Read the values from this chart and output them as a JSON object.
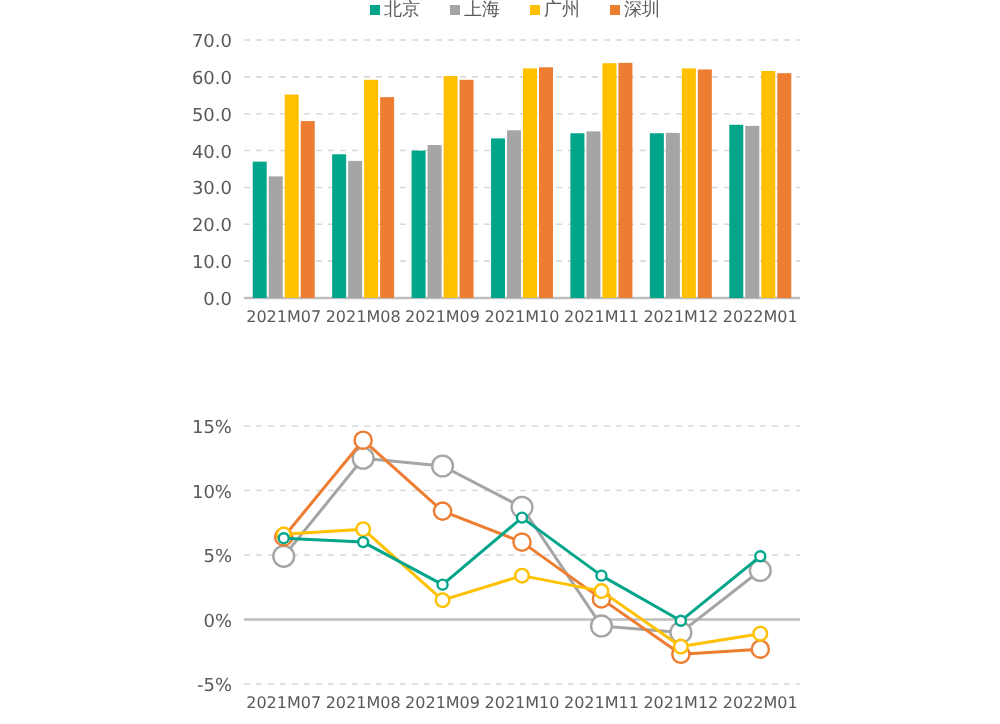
{
  "chart_data": [
    {
      "type": "bar",
      "categories": [
        "2021M07",
        "2021M08",
        "2021M09",
        "2021M10",
        "2021M11",
        "2021M12",
        "2022M01"
      ],
      "series": [
        {
          "name": "北京",
          "color": "#00a58a",
          "values": [
            37,
            39,
            40,
            43.3,
            44.7,
            44.7,
            47
          ]
        },
        {
          "name": "上海",
          "color": "#a5a5a5",
          "values": [
            33,
            37.2,
            41.5,
            45.5,
            45.2,
            44.8,
            46.7
          ]
        },
        {
          "name": "广州",
          "color": "#ffc000",
          "values": [
            55.2,
            59.2,
            60.2,
            62.3,
            63.7,
            62.3,
            61.6
          ]
        },
        {
          "name": "深圳",
          "color": "#ed7d31",
          "values": [
            48,
            54.5,
            59.2,
            62.6,
            63.8,
            62,
            61
          ]
        }
      ],
      "ylim": [
        0,
        70
      ],
      "yticks": [
        {
          "value": 0,
          "label": "0.0"
        },
        {
          "value": 10,
          "label": "10.0"
        },
        {
          "value": 20,
          "label": "20.0"
        },
        {
          "value": 30,
          "label": "30.0"
        },
        {
          "value": 40,
          "label": "40.0"
        },
        {
          "value": 50,
          "label": "50.0"
        },
        {
          "value": 60,
          "label": "60.0"
        },
        {
          "value": 70,
          "label": "70.0"
        }
      ],
      "grid": "y",
      "legend": "top"
    },
    {
      "type": "line",
      "categories": [
        "2021M07",
        "2021M08",
        "2021M09",
        "2021M10",
        "2021M11",
        "2021M12",
        "2022M01"
      ],
      "series": [
        {
          "color": "#a5a5a5",
          "values": [
            4.9,
            12.5,
            11.9,
            8.7,
            -0.5,
            -1.0,
            3.8
          ]
        },
        {
          "color": "#ed7d31",
          "values": [
            6.4,
            13.9,
            8.4,
            6.0,
            1.6,
            -2.7,
            -2.3
          ]
        },
        {
          "color": "#ffc000",
          "values": [
            6.6,
            7.0,
            1.5,
            3.4,
            2.2,
            -2.1,
            -1.1
          ]
        },
        {
          "color": "#00a58a",
          "values": [
            6.3,
            6.0,
            2.7,
            7.9,
            3.4,
            -0.1,
            4.9
          ]
        }
      ],
      "ylim": [
        -5,
        15
      ],
      "yticks": [
        {
          "value": -5,
          "label": "-5%"
        },
        {
          "value": 0,
          "label": "0%"
        },
        {
          "value": 5,
          "label": "5%"
        },
        {
          "value": 10,
          "label": "10%"
        },
        {
          "value": 15,
          "label": "15%"
        }
      ],
      "grid": "y",
      "marker": "circle",
      "line_style": "solid"
    }
  ]
}
